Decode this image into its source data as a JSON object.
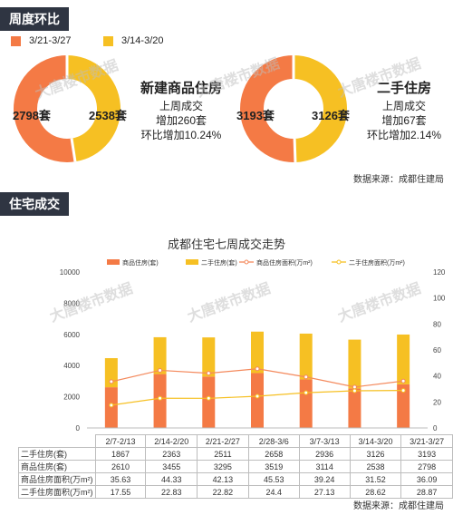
{
  "sections": {
    "weekly": "周度环比",
    "housing": "住宅成交"
  },
  "weekly": {
    "legend": [
      {
        "label": "3/21-3/27",
        "color": "#f47a45"
      },
      {
        "label": "3/14-3/20",
        "color": "#f6c023"
      }
    ],
    "new_homes": {
      "title": "新建商品住房",
      "line1": "上周成交",
      "line2": "增加260套",
      "line3": "环比增加10.24%",
      "current_label": "2798套",
      "previous_label": "2538套",
      "current": 2798,
      "previous": 2538
    },
    "second_hand": {
      "title": "二手住房",
      "line1": "上周成交",
      "line2": "增加67套",
      "line3": "环比增加2.14%",
      "current_label": "3193套",
      "previous_label": "3126套",
      "current": 3193,
      "previous": 3126
    },
    "source": "数据来源：成都住建局"
  },
  "chart_data": {
    "type": "bar",
    "title": "成都住宅七周成交走势",
    "categories": [
      "2/7-2/13",
      "2/14-2/20",
      "2/21-2/27",
      "2/28-3/6",
      "3/7-3/13",
      "3/14-3/20",
      "3/21-3/27"
    ],
    "series": [
      {
        "name": "商品住房(套)",
        "kind": "bar",
        "axis": "left",
        "color": "#f47a45",
        "values": [
          2610,
          3455,
          3295,
          3519,
          3114,
          2538,
          2798
        ]
      },
      {
        "name": "二手住房(套)",
        "kind": "bar",
        "axis": "left",
        "color": "#f6c023",
        "values": [
          1867,
          2363,
          2511,
          2658,
          2936,
          3126,
          3193
        ]
      },
      {
        "name": "商品住房面积(万m²)",
        "kind": "line",
        "axis": "right",
        "color": "#f4895c",
        "values": [
          35.63,
          44.33,
          42.13,
          45.53,
          39.24,
          31.52,
          36.09
        ]
      },
      {
        "name": "二手住房面积(万m²)",
        "kind": "line",
        "axis": "right",
        "color": "#f6c023",
        "values": [
          17.55,
          22.83,
          22.82,
          24.4,
          27.13,
          28.62,
          28.87
        ]
      }
    ],
    "left_axis": {
      "min": 0,
      "max": 10000,
      "ticks": [
        0,
        2000,
        4000,
        6000,
        8000,
        10000
      ]
    },
    "right_axis": {
      "min": 0,
      "max": 120,
      "ticks": [
        0,
        20,
        40,
        60,
        80,
        100,
        120
      ]
    },
    "stacked": true,
    "grid": false,
    "legend_position": "top"
  },
  "table": {
    "rows": [
      {
        "label": "二手住房(套)",
        "values": [
          "1867",
          "2363",
          "2511",
          "2658",
          "2936",
          "3126",
          "3193"
        ]
      },
      {
        "label": "商品住房(套)",
        "values": [
          "2610",
          "3455",
          "3295",
          "3519",
          "3114",
          "2538",
          "2798"
        ]
      },
      {
        "label": "商品住房面积(万m²)",
        "values": [
          "35.63",
          "44.33",
          "42.13",
          "45.53",
          "39.24",
          "31.52",
          "36.09"
        ]
      },
      {
        "label": "二手住房面积(万m²)",
        "values": [
          "17.55",
          "22.83",
          "22.82",
          "24.4",
          "27.13",
          "28.62",
          "28.87"
        ]
      }
    ]
  },
  "source_bottom": "数据来源：成都住建局",
  "watermark": "大唐楼市数据"
}
